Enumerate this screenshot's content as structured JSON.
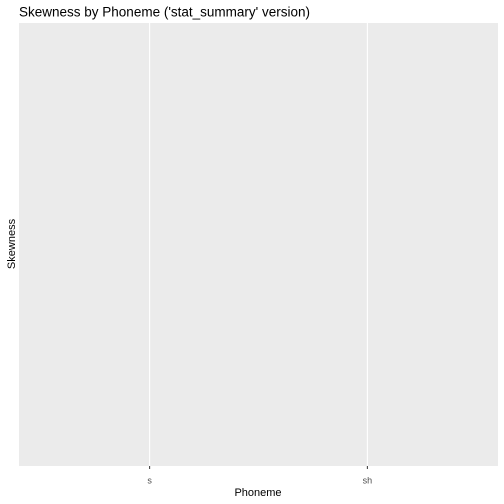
{
  "chart_data": {
    "type": "point",
    "title": "Skewness by Phoneme ('stat_summary' version)",
    "x_label": "Phoneme",
    "y_label": "Skewness",
    "categories": [
      "s",
      "sh"
    ],
    "grid": true
  }
}
